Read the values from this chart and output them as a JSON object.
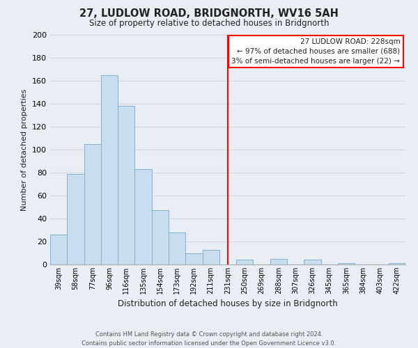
{
  "title": "27, LUDLOW ROAD, BRIDGNORTH, WV16 5AH",
  "subtitle": "Size of property relative to detached houses in Bridgnorth",
  "xlabel": "Distribution of detached houses by size in Bridgnorth",
  "ylabel": "Number of detached properties",
  "categories": [
    "39sqm",
    "58sqm",
    "77sqm",
    "96sqm",
    "116sqm",
    "135sqm",
    "154sqm",
    "173sqm",
    "192sqm",
    "211sqm",
    "231sqm",
    "250sqm",
    "269sqm",
    "288sqm",
    "307sqm",
    "326sqm",
    "345sqm",
    "365sqm",
    "384sqm",
    "403sqm",
    "422sqm"
  ],
  "values": [
    26,
    79,
    105,
    165,
    138,
    83,
    47,
    28,
    10,
    13,
    0,
    4,
    0,
    5,
    0,
    4,
    0,
    1,
    0,
    0,
    1
  ],
  "bar_color": "#c8dded",
  "bar_edge_color": "#7fb3d3",
  "vline_x_index": 10,
  "vline_color": "red",
  "annotation_title": "27 LUDLOW ROAD: 228sqm",
  "annotation_line1": "← 97% of detached houses are smaller (688)",
  "annotation_line2": "3% of semi-detached houses are larger (22) →",
  "annotation_box_edge": "red",
  "ylim": [
    0,
    200
  ],
  "yticks": [
    0,
    20,
    40,
    60,
    80,
    100,
    120,
    140,
    160,
    180,
    200
  ],
  "footer_line1": "Contains HM Land Registry data © Crown copyright and database right 2024.",
  "footer_line2": "Contains public sector information licensed under the Open Government Licence v3.0.",
  "bg_color": "#e8eef4",
  "grid_color": "#d0d8e0",
  "text_color": "#222222"
}
